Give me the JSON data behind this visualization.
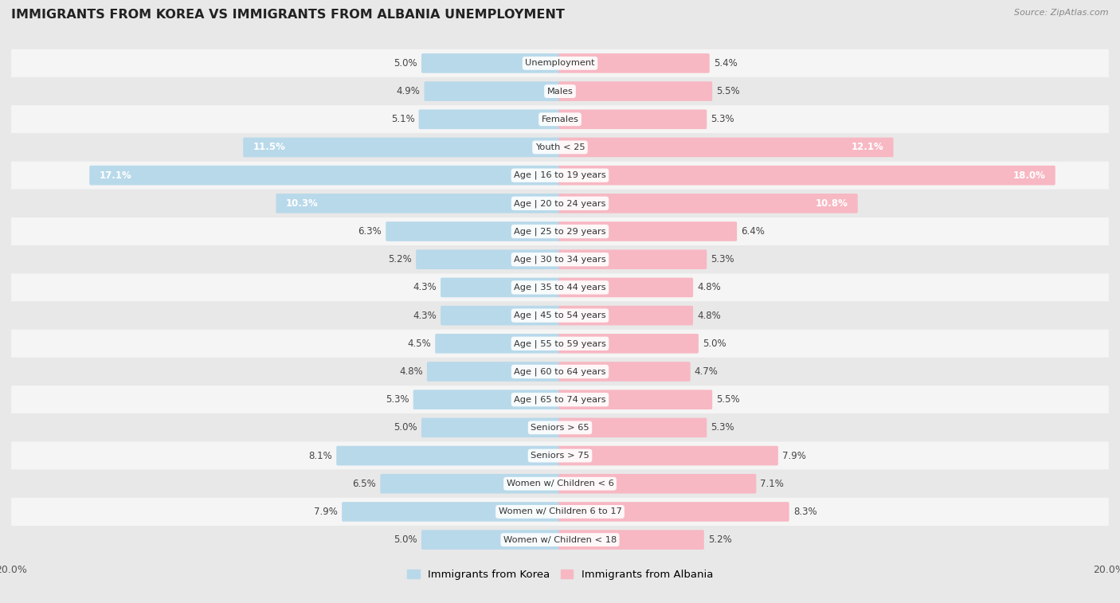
{
  "title": "IMMIGRANTS FROM KOREA VS IMMIGRANTS FROM ALBANIA UNEMPLOYMENT",
  "source": "Source: ZipAtlas.com",
  "categories": [
    "Unemployment",
    "Males",
    "Females",
    "Youth < 25",
    "Age | 16 to 19 years",
    "Age | 20 to 24 years",
    "Age | 25 to 29 years",
    "Age | 30 to 34 years",
    "Age | 35 to 44 years",
    "Age | 45 to 54 years",
    "Age | 55 to 59 years",
    "Age | 60 to 64 years",
    "Age | 65 to 74 years",
    "Seniors > 65",
    "Seniors > 75",
    "Women w/ Children < 6",
    "Women w/ Children 6 to 17",
    "Women w/ Children < 18"
  ],
  "korea_values": [
    5.0,
    4.9,
    5.1,
    11.5,
    17.1,
    10.3,
    6.3,
    5.2,
    4.3,
    4.3,
    4.5,
    4.8,
    5.3,
    5.0,
    8.1,
    6.5,
    7.9,
    5.0
  ],
  "albania_values": [
    5.4,
    5.5,
    5.3,
    12.1,
    18.0,
    10.8,
    6.4,
    5.3,
    4.8,
    4.8,
    5.0,
    4.7,
    5.5,
    5.3,
    7.9,
    7.1,
    8.3,
    5.2
  ],
  "korea_color": "#8dbdd8",
  "albania_color": "#f0889a",
  "korea_color_light": "#b8d9ea",
  "albania_color_light": "#f7b8c3",
  "background_color": "#e8e8e8",
  "row_bg_odd": "#f5f5f5",
  "row_bg_even": "#e8e8e8",
  "max_value": 20.0,
  "bar_height": 0.6,
  "legend_korea": "Immigrants from Korea",
  "legend_albania": "Immigrants from Albania",
  "label_inside_threshold": 9.0
}
